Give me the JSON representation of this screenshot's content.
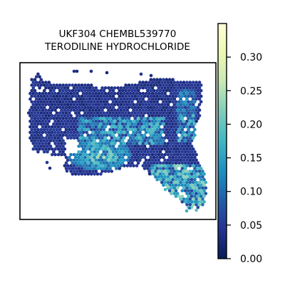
{
  "chart_data": {
    "type": "scatter",
    "title_line1": "UKF304 CHEMBL539770",
    "title_line2": "TERODILINE HYDROCHLORIDE",
    "colormap": "YlGnBu_r",
    "colorbar": {
      "min": 0.0,
      "max": 0.35,
      "ticks": [
        {
          "value": 0.0,
          "label": "0.00"
        },
        {
          "value": 0.05,
          "label": "0.05"
        },
        {
          "value": 0.1,
          "label": "0.10"
        },
        {
          "value": 0.15,
          "label": "0.15"
        },
        {
          "value": 0.2,
          "label": "0.20"
        },
        {
          "value": 0.25,
          "label": "0.25"
        },
        {
          "value": 0.3,
          "label": "0.30"
        }
      ]
    },
    "colors": {
      "stops": [
        "#081d58",
        "#253494",
        "#225ea8",
        "#1d91c0",
        "#41b6c4",
        "#7fcdbb",
        "#c7e9b4",
        "#edf8b1",
        "#ffffd9"
      ]
    },
    "axes_frame": true,
    "grid": false,
    "region_values": [
      {
        "region": "upper-tissue",
        "typical": 0.03
      },
      {
        "region": "center-band",
        "typical": 0.1
      },
      {
        "region": "lower-left-lobe",
        "typical": 0.18
      },
      {
        "region": "right-side-stripe",
        "typical": 0.14
      },
      {
        "region": "lower-right-tail",
        "typical": 0.15
      }
    ]
  }
}
